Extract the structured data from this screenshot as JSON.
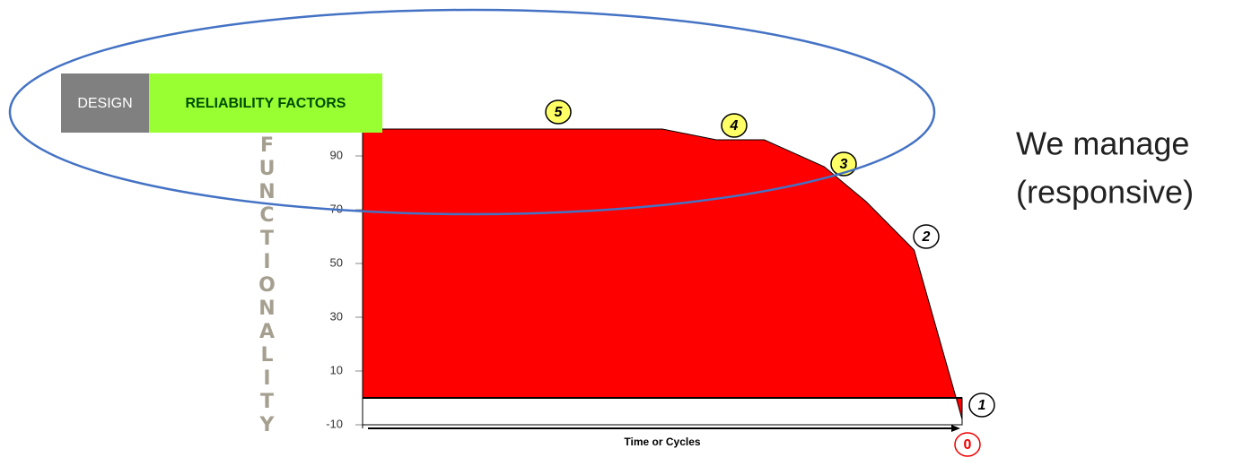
{
  "chart_data": {
    "type": "area",
    "x": [
      0,
      50,
      59,
      67,
      77,
      84,
      92,
      99,
      100
    ],
    "values": [
      100,
      100,
      96,
      96,
      86,
      73,
      55,
      0,
      -8
    ],
    "color": "#ff0000",
    "xlim": [
      0,
      100
    ],
    "ylim": [
      -10,
      100
    ],
    "yticks": [
      -10,
      10,
      30,
      50,
      70,
      90
    ],
    "xlabel": "Time or Cycles",
    "ylabel": "FUNCTIONALITY",
    "annotations": [
      "5",
      "4",
      "3",
      "2",
      "1",
      "0"
    ]
  },
  "tags": {
    "design": "DESIGN",
    "factors": "RELIABILITY FACTORS"
  },
  "side_text": [
    "We manage",
    "(responsive)"
  ]
}
